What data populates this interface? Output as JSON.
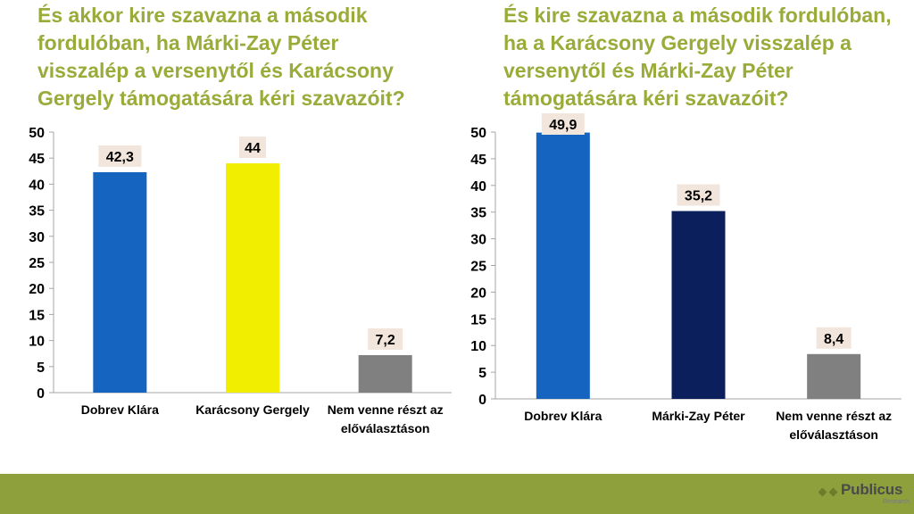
{
  "chart_data": [
    {
      "type": "bar",
      "title": "És akkor kire szavazna a második fordulóban, ha Márki-Zay Péter visszalép a versenytől és Karácsony Gergely támogatására kéri szavazóit?",
      "categories": [
        "Dobrev Klára",
        "Karácsony Gergely",
        "Nem venne részt az előválasztáson"
      ],
      "values": [
        42.3,
        44,
        7.2
      ],
      "value_labels": [
        "42,3",
        "44",
        "7,2"
      ],
      "colors": [
        "#1565c0",
        "#f2ee00",
        "#808080"
      ],
      "ylim": [
        0,
        50
      ],
      "yticks": [
        0,
        5,
        10,
        15,
        20,
        25,
        30,
        35,
        40,
        45,
        50
      ],
      "grid": false,
      "xlabel": "",
      "ylabel": ""
    },
    {
      "type": "bar",
      "title": "És kire szavazna a második fordulóban, ha a Karácsony Gergely visszalép a versenytől és Márki-Zay Péter támogatására kéri szavazóit?",
      "categories": [
        "Dobrev Klára",
        "Márki-Zay Péter",
        "Nem venne részt az előválasztáson"
      ],
      "values": [
        49.9,
        35.2,
        8.4
      ],
      "value_labels": [
        "49,9",
        "35,2",
        "8,4"
      ],
      "colors": [
        "#1565c0",
        "#0b1f5c",
        "#808080"
      ],
      "ylim": [
        0,
        50
      ],
      "yticks": [
        0,
        5,
        10,
        15,
        20,
        25,
        30,
        35,
        40,
        45,
        50
      ],
      "grid": false,
      "xlabel": "",
      "ylabel": ""
    }
  ],
  "titles": {
    "left": "És akkor kire szavazna a második\nfordulóban, ha Márki-Zay Péter\nvisszalép a versenytől és Karácsony\nGergely támogatására kéri szavazóit?",
    "right": "És kire szavazna a második fordulóban,\nha a Karácsony Gergely visszalép a\nversenytől és Márki-Zay Péter\ntámogatására kéri szavazóit?"
  },
  "logo": {
    "name": "Publicus",
    "sub": "Research"
  },
  "colors": {
    "title": "#9aab3a",
    "footer": "#8da03c",
    "label_bg": "#f2e6dc"
  }
}
